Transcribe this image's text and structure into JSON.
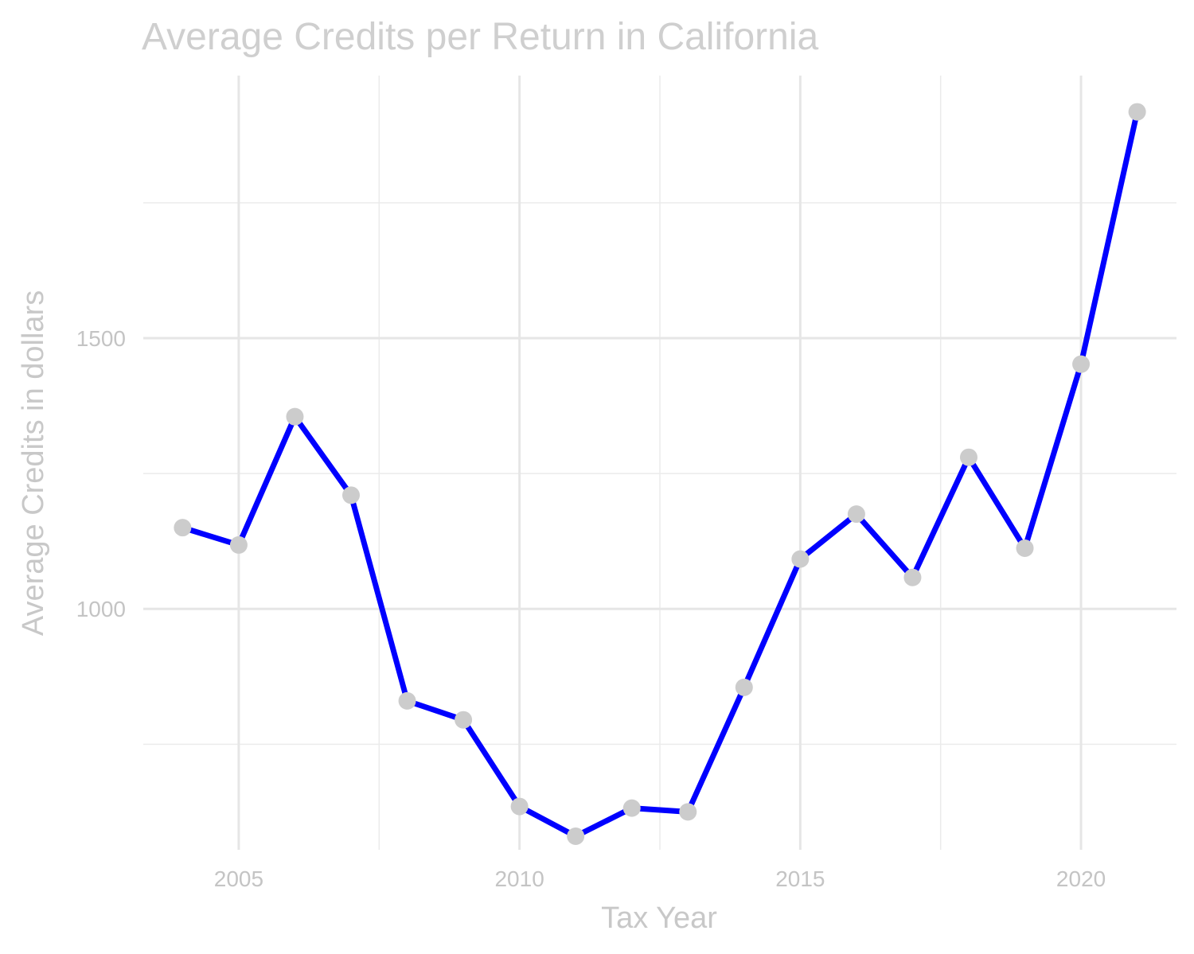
{
  "chart_data": {
    "type": "line",
    "title": "Average Credits per Return in California",
    "xlabel": "Tax Year",
    "ylabel": "Average Credits in dollars",
    "x": [
      2004,
      2005,
      2006,
      2007,
      2008,
      2009,
      2010,
      2011,
      2012,
      2013,
      2014,
      2015,
      2016,
      2017,
      2018,
      2019,
      2020,
      2021
    ],
    "series": [
      {
        "values": [
          1150,
          1118,
          1355,
          1210,
          830,
          795,
          635,
          580,
          632,
          625,
          855,
          1092,
          1175,
          1058,
          1280,
          1112,
          1452,
          1918
        ]
      }
    ],
    "xlim": [
      2003.3,
      2021.7
    ],
    "ylim": [
      555,
      1985
    ],
    "x_ticks": [
      2005,
      2010,
      2015,
      2020
    ],
    "x_tick_labels": [
      "2005",
      "2010",
      "2015",
      "2020"
    ],
    "x_minor_ticks": [
      2007.5,
      2012.5,
      2017.5
    ],
    "y_ticks": [
      1000,
      1500
    ],
    "y_tick_labels": [
      "1000",
      "1500"
    ],
    "y_minor_ticks": [
      750,
      1250,
      1750
    ],
    "grid": true,
    "legend": "none",
    "colors": {
      "line": "#0000ff",
      "point": "#cccccc",
      "grid": "#e6e6e6",
      "text": "#c4c4c4"
    }
  }
}
